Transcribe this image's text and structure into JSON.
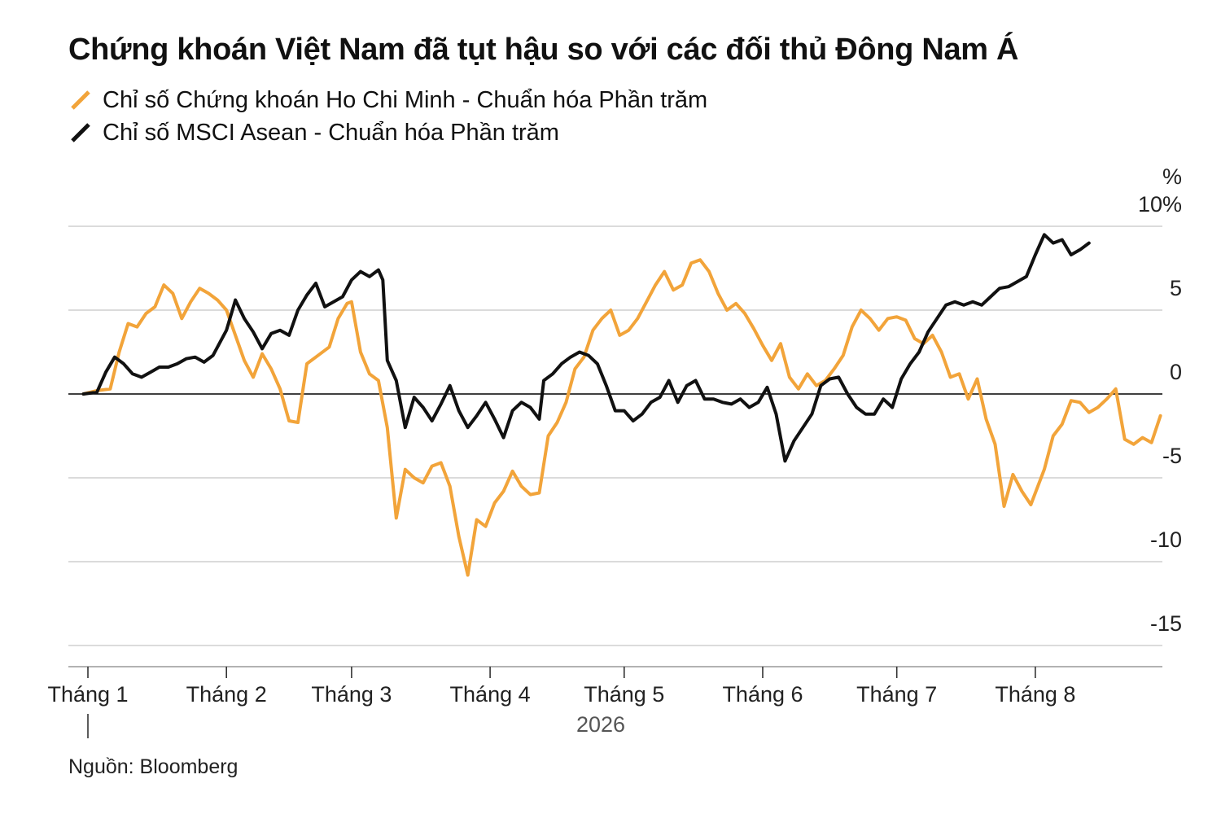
{
  "chart_data": {
    "type": "line",
    "title": "Chứng khoán Việt Nam đã tụt hậu so với các đối thủ Đông Nam Á",
    "unit_label": "%",
    "y_tick_labels": [
      {
        "value": 10,
        "label": "10%"
      },
      {
        "value": 5,
        "label": "5"
      },
      {
        "value": 0,
        "label": "0"
      },
      {
        "value": -5,
        "label": "-5"
      },
      {
        "value": -10,
        "label": "-10"
      },
      {
        "value": -15,
        "label": "-15"
      }
    ],
    "ylim": [
      -15,
      10
    ],
    "x_tick_labels": [
      {
        "date": "2026-01-01",
        "label": "Tháng 1"
      },
      {
        "date": "2026-02-01",
        "label": "Tháng 2"
      },
      {
        "date": "2026-03-01",
        "label": "Tháng 3"
      },
      {
        "date": "2026-04-01",
        "label": "Tháng 4"
      },
      {
        "date": "2026-05-01",
        "label": "Tháng 5"
      },
      {
        "date": "2026-06-01",
        "label": "Tháng 6"
      },
      {
        "date": "2026-07-01",
        "label": "Tháng 7"
      },
      {
        "date": "2026-08-01",
        "label": "Tháng 8"
      }
    ],
    "year_label": "2026",
    "grid": true,
    "legend_position": "top-left",
    "series": [
      {
        "name": "Chỉ số Chứng khoán Ho Chi Minh - Chuẩn hóa Phần trăm",
        "color": "#f2a43a",
        "points": [
          [
            "2025-12-31",
            0
          ],
          [
            "2026-01-03",
            0.2
          ],
          [
            "2026-01-06",
            0.3
          ],
          [
            "2026-01-08",
            2.5
          ],
          [
            "2026-01-10",
            4.2
          ],
          [
            "2026-01-12",
            4.0
          ],
          [
            "2026-01-14",
            4.8
          ],
          [
            "2026-01-16",
            5.2
          ],
          [
            "2026-01-18",
            6.5
          ],
          [
            "2026-01-20",
            6.0
          ],
          [
            "2026-01-22",
            4.5
          ],
          [
            "2026-01-24",
            5.5
          ],
          [
            "2026-01-26",
            6.3
          ],
          [
            "2026-01-28",
            6.0
          ],
          [
            "2026-01-30",
            5.6
          ],
          [
            "2026-02-01",
            5.0
          ],
          [
            "2026-02-03",
            3.5
          ],
          [
            "2026-02-05",
            2.0
          ],
          [
            "2026-02-07",
            1.0
          ],
          [
            "2026-02-09",
            2.4
          ],
          [
            "2026-02-11",
            1.5
          ],
          [
            "2026-02-13",
            0.3
          ],
          [
            "2026-02-15",
            -1.6
          ],
          [
            "2026-02-17",
            -1.7
          ],
          [
            "2026-02-19",
            1.8
          ],
          [
            "2026-02-21",
            2.2
          ],
          [
            "2026-02-24",
            2.8
          ],
          [
            "2026-02-26",
            4.5
          ],
          [
            "2026-02-28",
            5.4
          ],
          [
            "2026-03-01",
            5.5
          ],
          [
            "2026-03-03",
            2.5
          ],
          [
            "2026-03-05",
            1.2
          ],
          [
            "2026-03-07",
            0.8
          ],
          [
            "2026-03-09",
            -2.0
          ],
          [
            "2026-03-11",
            -7.4
          ],
          [
            "2026-03-13",
            -4.5
          ],
          [
            "2026-03-15",
            -5.0
          ],
          [
            "2026-03-17",
            -5.3
          ],
          [
            "2026-03-19",
            -4.3
          ],
          [
            "2026-03-21",
            -4.1
          ],
          [
            "2026-03-23",
            -5.5
          ],
          [
            "2026-03-25",
            -8.5
          ],
          [
            "2026-03-27",
            -10.8
          ],
          [
            "2026-03-29",
            -7.5
          ],
          [
            "2026-03-31",
            -7.9
          ],
          [
            "2026-04-02",
            -6.5
          ],
          [
            "2026-04-04",
            -5.8
          ],
          [
            "2026-04-06",
            -4.6
          ],
          [
            "2026-04-08",
            -5.5
          ],
          [
            "2026-04-10",
            -6.0
          ],
          [
            "2026-04-12",
            -5.9
          ],
          [
            "2026-04-14",
            -2.5
          ],
          [
            "2026-04-16",
            -1.7
          ],
          [
            "2026-04-18",
            -0.5
          ],
          [
            "2026-04-20",
            1.5
          ],
          [
            "2026-04-22",
            2.2
          ],
          [
            "2026-04-24",
            3.8
          ],
          [
            "2026-04-26",
            4.5
          ],
          [
            "2026-04-28",
            5.0
          ],
          [
            "2026-04-30",
            3.5
          ],
          [
            "2026-05-02",
            3.8
          ],
          [
            "2026-05-04",
            4.5
          ],
          [
            "2026-05-06",
            5.5
          ],
          [
            "2026-05-08",
            6.5
          ],
          [
            "2026-05-10",
            7.3
          ],
          [
            "2026-05-12",
            6.2
          ],
          [
            "2026-05-14",
            6.5
          ],
          [
            "2026-05-16",
            7.8
          ],
          [
            "2026-05-18",
            8.0
          ],
          [
            "2026-05-20",
            7.3
          ],
          [
            "2026-05-22",
            6.0
          ],
          [
            "2026-05-24",
            5.0
          ],
          [
            "2026-05-26",
            5.4
          ],
          [
            "2026-05-28",
            4.8
          ],
          [
            "2026-05-30",
            3.9
          ],
          [
            "2026-06-01",
            2.9
          ],
          [
            "2026-06-03",
            2.0
          ],
          [
            "2026-06-05",
            3.0
          ],
          [
            "2026-06-07",
            1.0
          ],
          [
            "2026-06-09",
            0.3
          ],
          [
            "2026-06-11",
            1.2
          ],
          [
            "2026-06-13",
            0.5
          ],
          [
            "2026-06-15",
            0.8
          ],
          [
            "2026-06-17",
            1.5
          ],
          [
            "2026-06-19",
            2.3
          ],
          [
            "2026-06-21",
            4.0
          ],
          [
            "2026-06-23",
            5.0
          ],
          [
            "2026-06-25",
            4.5
          ],
          [
            "2026-06-27",
            3.8
          ],
          [
            "2026-06-29",
            4.5
          ],
          [
            "2026-07-01",
            4.6
          ],
          [
            "2026-07-03",
            4.4
          ],
          [
            "2026-07-05",
            3.3
          ],
          [
            "2026-07-07",
            3.0
          ],
          [
            "2026-07-09",
            3.5
          ],
          [
            "2026-07-11",
            2.5
          ],
          [
            "2026-07-13",
            1.0
          ],
          [
            "2026-07-15",
            1.2
          ],
          [
            "2026-07-17",
            -0.3
          ],
          [
            "2026-07-19",
            0.9
          ],
          [
            "2026-07-21",
            -1.5
          ],
          [
            "2026-07-23",
            -3.0
          ],
          [
            "2026-07-25",
            -6.7
          ],
          [
            "2026-07-27",
            -4.8
          ],
          [
            "2026-07-29",
            -5.8
          ],
          [
            "2026-07-31",
            -6.6
          ],
          [
            "2026-08-03",
            -4.5
          ],
          [
            "2026-08-05",
            -2.5
          ],
          [
            "2026-08-07",
            -1.8
          ],
          [
            "2026-08-09",
            -0.4
          ],
          [
            "2026-08-11",
            -0.5
          ],
          [
            "2026-08-13",
            -1.1
          ],
          [
            "2026-08-15",
            -0.8
          ],
          [
            "2026-08-17",
            -0.3
          ],
          [
            "2026-08-19",
            0.3
          ],
          [
            "2026-08-21",
            -2.7
          ],
          [
            "2026-08-23",
            -3.0
          ],
          [
            "2026-08-25",
            -2.6
          ],
          [
            "2026-08-27",
            -2.9
          ],
          [
            "2026-08-29",
            -1.3
          ]
        ]
      },
      {
        "name": "Chỉ số MSCI Asean - Chuẩn hóa Phần trăm",
        "color": "#111111",
        "points": [
          [
            "2025-12-31",
            0
          ],
          [
            "2026-01-03",
            0.1
          ],
          [
            "2026-01-05",
            1.3
          ],
          [
            "2026-01-07",
            2.2
          ],
          [
            "2026-01-09",
            1.8
          ],
          [
            "2026-01-11",
            1.2
          ],
          [
            "2026-01-13",
            1.0
          ],
          [
            "2026-01-15",
            1.3
          ],
          [
            "2026-01-17",
            1.6
          ],
          [
            "2026-01-19",
            1.6
          ],
          [
            "2026-01-21",
            1.8
          ],
          [
            "2026-01-23",
            2.1
          ],
          [
            "2026-01-25",
            2.2
          ],
          [
            "2026-01-27",
            1.9
          ],
          [
            "2026-01-29",
            2.3
          ],
          [
            "2026-02-01",
            3.8
          ],
          [
            "2026-02-03",
            5.6
          ],
          [
            "2026-02-05",
            4.5
          ],
          [
            "2026-02-07",
            3.7
          ],
          [
            "2026-02-09",
            2.7
          ],
          [
            "2026-02-11",
            3.6
          ],
          [
            "2026-02-13",
            3.8
          ],
          [
            "2026-02-15",
            3.5
          ],
          [
            "2026-02-17",
            5.0
          ],
          [
            "2026-02-19",
            5.9
          ],
          [
            "2026-02-21",
            6.6
          ],
          [
            "2026-02-23",
            5.2
          ],
          [
            "2026-02-25",
            5.5
          ],
          [
            "2026-02-27",
            5.8
          ],
          [
            "2026-03-01",
            6.8
          ],
          [
            "2026-03-03",
            7.3
          ],
          [
            "2026-03-05",
            7.0
          ],
          [
            "2026-03-07",
            7.4
          ],
          [
            "2026-03-08",
            6.8
          ],
          [
            "2026-03-09",
            2.0
          ],
          [
            "2026-03-11",
            0.8
          ],
          [
            "2026-03-13",
            -2.0
          ],
          [
            "2026-03-15",
            -0.2
          ],
          [
            "2026-03-17",
            -0.8
          ],
          [
            "2026-03-19",
            -1.6
          ],
          [
            "2026-03-21",
            -0.6
          ],
          [
            "2026-03-23",
            0.5
          ],
          [
            "2026-03-25",
            -1.0
          ],
          [
            "2026-03-27",
            -2.0
          ],
          [
            "2026-03-29",
            -1.3
          ],
          [
            "2026-03-31",
            -0.5
          ],
          [
            "2026-04-02",
            -1.5
          ],
          [
            "2026-04-04",
            -2.6
          ],
          [
            "2026-04-06",
            -1.0
          ],
          [
            "2026-04-08",
            -0.5
          ],
          [
            "2026-04-10",
            -0.8
          ],
          [
            "2026-04-12",
            -1.5
          ],
          [
            "2026-04-13",
            0.8
          ],
          [
            "2026-04-15",
            1.2
          ],
          [
            "2026-04-17",
            1.8
          ],
          [
            "2026-04-19",
            2.2
          ],
          [
            "2026-04-21",
            2.5
          ],
          [
            "2026-04-23",
            2.3
          ],
          [
            "2026-04-25",
            1.8
          ],
          [
            "2026-04-27",
            0.5
          ],
          [
            "2026-04-29",
            -1.0
          ],
          [
            "2026-05-01",
            -1.0
          ],
          [
            "2026-05-03",
            -1.6
          ],
          [
            "2026-05-05",
            -1.2
          ],
          [
            "2026-05-07",
            -0.5
          ],
          [
            "2026-05-09",
            -0.2
          ],
          [
            "2026-05-11",
            0.8
          ],
          [
            "2026-05-13",
            -0.5
          ],
          [
            "2026-05-15",
            0.5
          ],
          [
            "2026-05-17",
            0.8
          ],
          [
            "2026-05-19",
            -0.3
          ],
          [
            "2026-05-21",
            -0.3
          ],
          [
            "2026-05-23",
            -0.5
          ],
          [
            "2026-05-25",
            -0.6
          ],
          [
            "2026-05-27",
            -0.3
          ],
          [
            "2026-05-29",
            -0.8
          ],
          [
            "2026-05-31",
            -0.5
          ],
          [
            "2026-06-02",
            0.4
          ],
          [
            "2026-06-04",
            -1.2
          ],
          [
            "2026-06-06",
            -4.0
          ],
          [
            "2026-06-08",
            -2.8
          ],
          [
            "2026-06-10",
            -2.0
          ],
          [
            "2026-06-12",
            -1.2
          ],
          [
            "2026-06-14",
            0.5
          ],
          [
            "2026-06-16",
            0.9
          ],
          [
            "2026-06-18",
            1.0
          ],
          [
            "2026-06-20",
            0.0
          ],
          [
            "2026-06-22",
            -0.8
          ],
          [
            "2026-06-24",
            -1.2
          ],
          [
            "2026-06-26",
            -1.2
          ],
          [
            "2026-06-28",
            -0.3
          ],
          [
            "2026-06-30",
            -0.8
          ],
          [
            "2026-07-02",
            0.9
          ],
          [
            "2026-07-04",
            1.8
          ],
          [
            "2026-07-06",
            2.5
          ],
          [
            "2026-07-08",
            3.7
          ],
          [
            "2026-07-10",
            4.5
          ],
          [
            "2026-07-12",
            5.3
          ],
          [
            "2026-07-14",
            5.5
          ],
          [
            "2026-07-16",
            5.3
          ],
          [
            "2026-07-18",
            5.5
          ],
          [
            "2026-07-20",
            5.3
          ],
          [
            "2026-07-22",
            5.8
          ],
          [
            "2026-07-24",
            6.3
          ],
          [
            "2026-07-26",
            6.4
          ],
          [
            "2026-07-28",
            6.7
          ],
          [
            "2026-07-30",
            7.0
          ],
          [
            "2026-08-01",
            8.3
          ],
          [
            "2026-08-03",
            9.5
          ],
          [
            "2026-08-05",
            9.0
          ],
          [
            "2026-08-07",
            9.2
          ],
          [
            "2026-08-09",
            8.3
          ],
          [
            "2026-08-11",
            8.6
          ],
          [
            "2026-08-13",
            9.0
          ]
        ]
      }
    ]
  },
  "source": "Nguồn: Bloomberg"
}
